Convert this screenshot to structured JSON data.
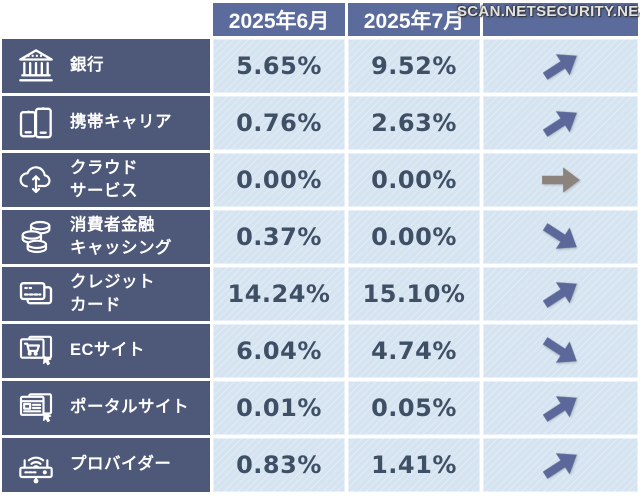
{
  "watermark": "SCAN.NETSECURITY.NE.JP",
  "table": {
    "columns": [
      "2025年6月",
      "2025年7月"
    ],
    "rows": [
      {
        "id": "bank",
        "icon": "bank-icon",
        "label": [
          "銀行"
        ],
        "values": [
          "5.65%",
          "9.52%"
        ],
        "trend": "up"
      },
      {
        "id": "mobile-carrier",
        "icon": "mobile-carrier-icon",
        "label": [
          "携帯キャリア"
        ],
        "values": [
          "0.76%",
          "2.63%"
        ],
        "trend": "up"
      },
      {
        "id": "cloud-service",
        "icon": "cloud-service-icon",
        "label": [
          "クラウド",
          "サービス"
        ],
        "values": [
          "0.00%",
          "0.00%"
        ],
        "trend": "flat"
      },
      {
        "id": "consumer-finance",
        "icon": "coins-icon",
        "label": [
          "消費者金融",
          "キャッシング"
        ],
        "values": [
          "0.37%",
          "0.00%"
        ],
        "trend": "down"
      },
      {
        "id": "credit-card",
        "icon": "credit-card-icon",
        "label": [
          "クレジット",
          "カード"
        ],
        "values": [
          "14.24%",
          "15.10%"
        ],
        "trend": "up"
      },
      {
        "id": "ec-site",
        "icon": "ec-site-icon",
        "label": [
          "ECサイト"
        ],
        "values": [
          "6.04%",
          "4.74%"
        ],
        "trend": "down"
      },
      {
        "id": "portal-site",
        "icon": "portal-site-icon",
        "label": [
          "ポータルサイト"
        ],
        "values": [
          "0.01%",
          "0.05%"
        ],
        "trend": "up"
      },
      {
        "id": "provider",
        "icon": "router-icon",
        "label": [
          "プロバイダー"
        ],
        "values": [
          "0.83%",
          "1.41%"
        ],
        "trend": "up"
      }
    ]
  },
  "colors": {
    "header_bg": "#5b6b9c",
    "label_bg": "#4e5878",
    "cell_bg": "#d5e4f0",
    "value_text": "#3e4f66",
    "trend_arrow": "#5c689a",
    "trend_flat_arrow": "#8b837c"
  },
  "chart_data": {
    "type": "table",
    "categories": [
      "銀行",
      "携帯キャリア",
      "クラウドサービス",
      "消費者金融キャッシング",
      "クレジットカード",
      "ECサイト",
      "ポータルサイト",
      "プロバイダー"
    ],
    "series": [
      {
        "name": "2025年6月",
        "values": [
          5.65,
          0.76,
          0.0,
          0.37,
          14.24,
          6.04,
          0.01,
          0.83
        ]
      },
      {
        "name": "2025年7月",
        "values": [
          9.52,
          2.63,
          0.0,
          0.0,
          15.1,
          4.74,
          0.05,
          1.41
        ]
      }
    ],
    "trends": [
      "up",
      "up",
      "flat",
      "down",
      "up",
      "down",
      "up",
      "up"
    ],
    "unit": "%"
  }
}
